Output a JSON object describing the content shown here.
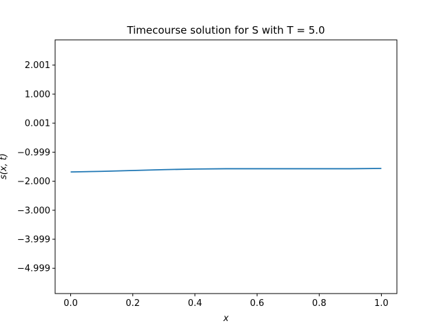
{
  "chart_data": {
    "type": "line",
    "title": "Timecourse solution for S with T = 5.0",
    "xlabel": "x",
    "ylabel": "s(x, t)",
    "xlim": [
      -0.05,
      1.05
    ],
    "ylim": [
      -5.87,
      2.87
    ],
    "xticks": [
      {
        "value": 0.0,
        "label": "0.0"
      },
      {
        "value": 0.2,
        "label": "0.2"
      },
      {
        "value": 0.4,
        "label": "0.4"
      },
      {
        "value": 0.6,
        "label": "0.6"
      },
      {
        "value": 0.8,
        "label": "0.8"
      },
      {
        "value": 1.0,
        "label": "1.0"
      }
    ],
    "yticks": [
      {
        "value": 2.001,
        "label": "2.001"
      },
      {
        "value": 1.0,
        "label": "1.000"
      },
      {
        "value": 0.001,
        "label": "0.001"
      },
      {
        "value": -0.999,
        "label": "−0.999"
      },
      {
        "value": -2.0,
        "label": "−2.000"
      },
      {
        "value": -3.0,
        "label": "−3.000"
      },
      {
        "value": -3.999,
        "label": "−3.999"
      },
      {
        "value": -4.999,
        "label": "−4.999"
      }
    ],
    "grid": false,
    "series": [
      {
        "color": "#1f77b4",
        "x": [
          0.0,
          0.1,
          0.2,
          0.3,
          0.4,
          0.5,
          0.6,
          0.7,
          0.8,
          0.9,
          1.0
        ],
        "y": [
          -1.68,
          -1.66,
          -1.63,
          -1.6,
          -1.58,
          -1.57,
          -1.57,
          -1.57,
          -1.57,
          -1.57,
          -1.56
        ]
      }
    ]
  }
}
